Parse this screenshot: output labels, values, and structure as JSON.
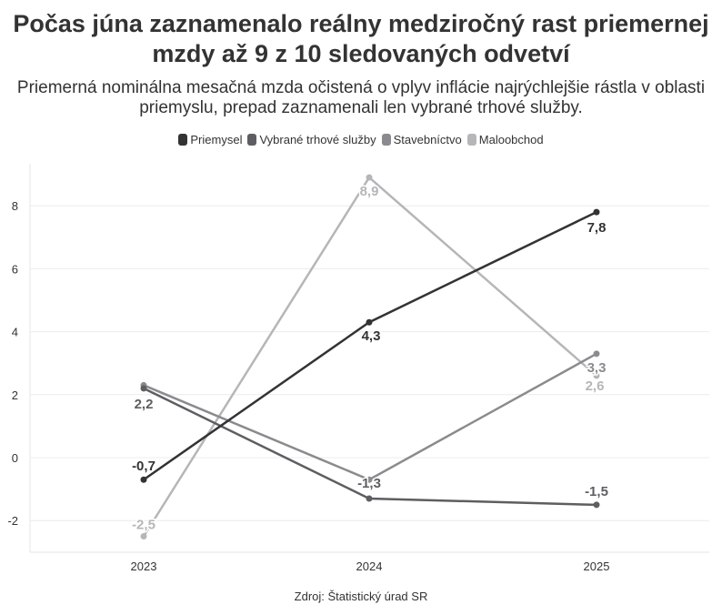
{
  "chart_data": {
    "type": "line",
    "title": "Počas júna zaznamenalo reálny medziročný rast priemernej mzdy až 9 z 10 sledovaných odvetví",
    "subtitle": "Priemerná nominálna mesačná mzda očistená o vplyv inflácie najrýchlejšie rástla v oblasti priemyslu, prepad zaznamenali len vybrané trhové služby.",
    "source": "Zdroj: Štatistický úrad SR",
    "x": [
      "2023",
      "2024",
      "2025"
    ],
    "ylim": [
      -3,
      9
    ],
    "yticks": [
      "-2",
      "0",
      "2",
      "4",
      "6",
      "8"
    ],
    "grid": true,
    "legend_position": "top",
    "series": [
      {
        "name": "Priemysel",
        "color": "#333333",
        "values": [
          -0.7,
          4.3,
          7.8
        ],
        "labels": [
          "-0,7",
          "4,3",
          "7,8"
        ]
      },
      {
        "name": "Vybrané trhové služby",
        "color": "#5e5e62",
        "values": [
          2.2,
          -1.3,
          -1.5
        ],
        "labels": [
          "2,2",
          "-1,3",
          "-1,5"
        ]
      },
      {
        "name": "Stavebníctvo",
        "color": "#8b8b8f",
        "values": [
          2.3,
          -0.7,
          3.3
        ],
        "labels": [
          "",
          "",
          "3,3"
        ]
      },
      {
        "name": "Maloobchod",
        "color": "#b6b6b9",
        "values": [
          -2.5,
          8.9,
          2.6
        ],
        "labels": [
          "-2,5",
          "8,9",
          "2,6"
        ]
      }
    ]
  }
}
